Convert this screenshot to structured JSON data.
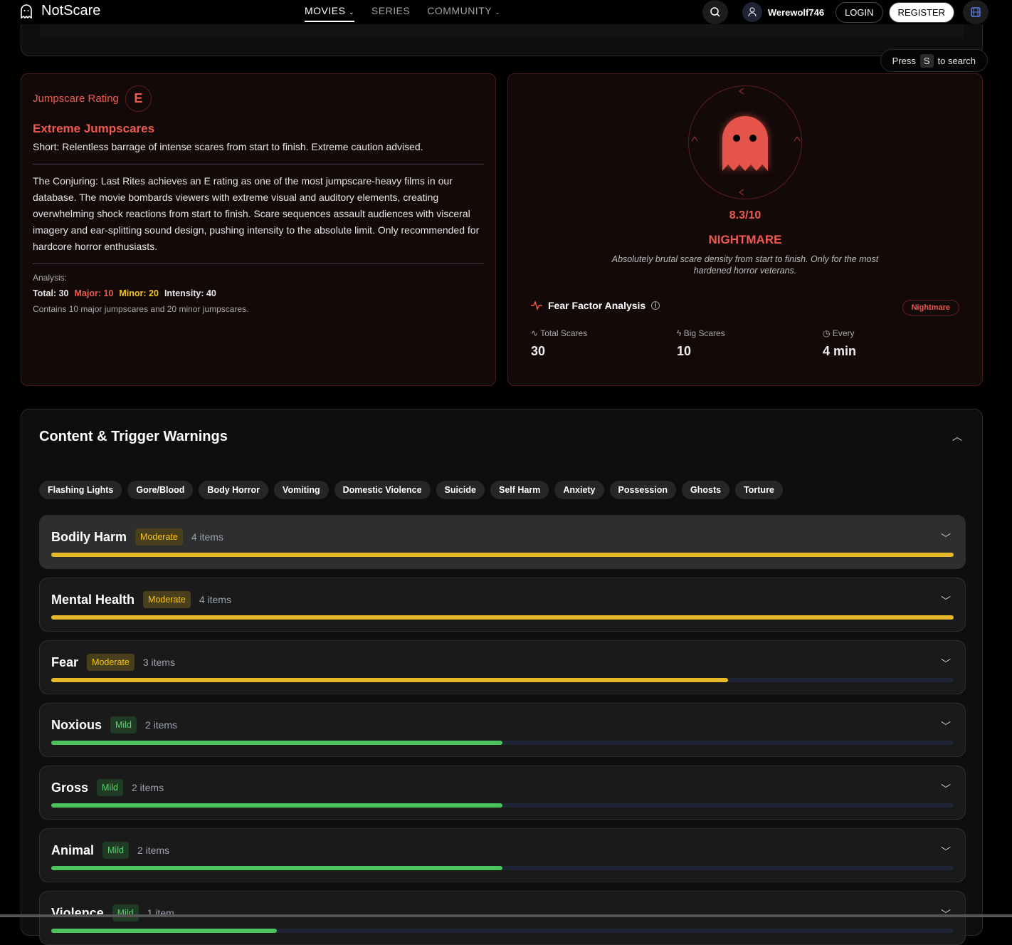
{
  "nav": {
    "brand": "NotScare",
    "menu": [
      "MOVIES",
      "SERIES",
      "COMMUNITY"
    ],
    "username": "Werewolf746",
    "login": "LOGIN",
    "register": "REGISTER"
  },
  "search_hint": {
    "press": "Press",
    "key": "S",
    "rest": "to search"
  },
  "jumpscare": {
    "label": "Jumpscare Rating",
    "grade": "E",
    "title": "Extreme Jumpscares",
    "short": "Short: Relentless barrage of intense scares from start to finish. Extreme caution advised.",
    "description": "The Conjuring: Last Rites achieves an E rating as one of the most jumpscare-heavy films in our database. The movie bombards viewers with extreme visual and auditory elements, creating overwhelming shock reactions from start to finish. Scare sequences assault audiences with visceral imagery and ear-splitting sound design, pushing intensity to the absolute limit. Only recommended for hardcore horror enthusiasts.",
    "analysis_label": "Analysis:",
    "total": "Total: 30",
    "major": "Major: 10",
    "minor": "Minor: 20",
    "intensity": "Intensity: 40",
    "summary": "Contains 10 major jumpscares and 20 minor jumpscares."
  },
  "fear": {
    "score": "8.3/10",
    "level": "NIGHTMARE",
    "tagline": "Absolutely brutal scare density from start to finish. Only for the most hardened horror veterans.",
    "analysis_title": "Fear Factor Analysis",
    "pill": "Nightmare",
    "stats": [
      {
        "label": "Total Scares",
        "value": "30"
      },
      {
        "label": "Big Scares",
        "value": "10"
      },
      {
        "label": "Every",
        "value": "4 min"
      }
    ]
  },
  "warnings": {
    "title": "Content & Trigger Warnings",
    "tags": [
      "Flashing Lights",
      "Gore/Blood",
      "Body Horror",
      "Vomiting",
      "Domestic Violence",
      "Suicide",
      "Self Harm",
      "Anxiety",
      "Possession",
      "Ghosts",
      "Torture"
    ],
    "categories": [
      {
        "name": "Bodily Harm",
        "severity": "Moderate",
        "count": "4 items",
        "level": 1.0
      },
      {
        "name": "Mental Health",
        "severity": "Moderate",
        "count": "4 items",
        "level": 1.0
      },
      {
        "name": "Fear",
        "severity": "Moderate",
        "count": "3 items",
        "level": 0.75
      },
      {
        "name": "Noxious",
        "severity": "Mild",
        "count": "2 items",
        "level": 0.5
      },
      {
        "name": "Gross",
        "severity": "Mild",
        "count": "2 items",
        "level": 0.5
      },
      {
        "name": "Animal",
        "severity": "Mild",
        "count": "2 items",
        "level": 0.5
      },
      {
        "name": "Violence",
        "severity": "Mild",
        "count": "1 item",
        "level": 0.25
      }
    ]
  },
  "colors": {
    "accent": "#ef5a4f",
    "moderate": "#e6b82a",
    "mild": "#4cc35e"
  }
}
